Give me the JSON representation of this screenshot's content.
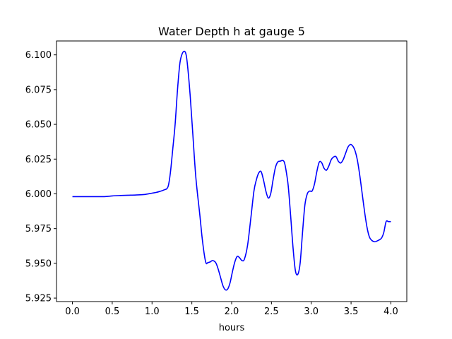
{
  "chart_data": {
    "type": "line",
    "title": "Water Depth h at gauge 5",
    "xlabel": "hours",
    "ylabel": "",
    "xlim": [
      -0.2,
      4.2
    ],
    "ylim": [
      5.9225,
      6.11
    ],
    "xticks": [
      0.0,
      0.5,
      1.0,
      1.5,
      2.0,
      2.5,
      3.0,
      3.5,
      4.0
    ],
    "xtick_labels": [
      "0.0",
      "0.5",
      "1.0",
      "1.5",
      "2.0",
      "2.5",
      "3.0",
      "3.5",
      "4.0"
    ],
    "yticks": [
      5.925,
      5.95,
      5.975,
      6.0,
      6.025,
      6.05,
      6.075,
      6.1
    ],
    "ytick_labels": [
      "5.925",
      "5.950",
      "5.975",
      "6.000",
      "6.025",
      "6.050",
      "6.075",
      "6.100"
    ],
    "grid": false,
    "legend": false,
    "series": [
      {
        "color": "#0000ff",
        "x": [
          0.0,
          0.2,
          0.4,
          0.5,
          0.6,
          0.7,
          0.8,
          0.9,
          1.0,
          1.05,
          1.1,
          1.15,
          1.2,
          1.23,
          1.26,
          1.29,
          1.32,
          1.35,
          1.38,
          1.41,
          1.43,
          1.45,
          1.48,
          1.51,
          1.55,
          1.6,
          1.63,
          1.66,
          1.68,
          1.7,
          1.73,
          1.76,
          1.8,
          1.83,
          1.86,
          1.89,
          1.92,
          1.95,
          1.98,
          2.01,
          2.04,
          2.07,
          2.1,
          2.13,
          2.16,
          2.2,
          2.24,
          2.28,
          2.31,
          2.34,
          2.37,
          2.4,
          2.43,
          2.46,
          2.49,
          2.52,
          2.55,
          2.58,
          2.61,
          2.64,
          2.66,
          2.68,
          2.71,
          2.74,
          2.77,
          2.8,
          2.83,
          2.86,
          2.89,
          2.92,
          2.95,
          2.98,
          3.01,
          3.04,
          3.07,
          3.1,
          3.13,
          3.16,
          3.19,
          3.22,
          3.25,
          3.28,
          3.31,
          3.34,
          3.37,
          3.4,
          3.43,
          3.46,
          3.49,
          3.52,
          3.55,
          3.58,
          3.61,
          3.64,
          3.67,
          3.7,
          3.73,
          3.76,
          3.8,
          3.84,
          3.88,
          3.91,
          3.94,
          3.97,
          4.0
        ],
        "y": [
          5.998,
          5.998,
          5.998,
          5.9985,
          5.9988,
          5.999,
          5.9992,
          5.9995,
          6.0005,
          6.001,
          6.0018,
          6.0028,
          6.005,
          6.015,
          6.032,
          6.05,
          6.075,
          6.094,
          6.101,
          6.1025,
          6.0995,
          6.09,
          6.07,
          6.045,
          6.012,
          5.985,
          5.968,
          5.955,
          5.95,
          5.9505,
          5.951,
          5.952,
          5.9505,
          5.946,
          5.94,
          5.934,
          5.931,
          5.9315,
          5.936,
          5.944,
          5.951,
          5.955,
          5.954,
          5.952,
          5.953,
          5.963,
          5.982,
          6.002,
          6.01,
          6.015,
          6.016,
          6.01,
          6.002,
          5.997,
          6.0,
          6.01,
          6.019,
          6.023,
          6.0235,
          6.024,
          6.023,
          6.018,
          6.006,
          5.985,
          5.962,
          5.945,
          5.942,
          5.95,
          5.972,
          5.992,
          6.0,
          6.002,
          6.002,
          6.007,
          6.016,
          6.0228,
          6.0225,
          6.0185,
          6.017,
          6.02,
          6.0245,
          6.0265,
          6.0268,
          6.0235,
          6.0222,
          6.0245,
          6.029,
          6.0335,
          6.0355,
          6.0345,
          6.031,
          6.024,
          6.013,
          6.0,
          5.987,
          5.976,
          5.969,
          5.9665,
          5.9655,
          5.9665,
          5.968,
          5.972,
          5.98,
          5.98,
          5.98
        ]
      }
    ]
  }
}
